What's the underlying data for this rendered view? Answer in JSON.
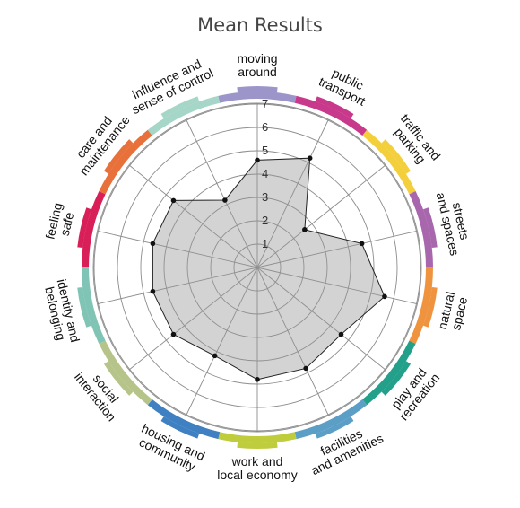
{
  "chart_data": {
    "type": "radar",
    "title": "Mean Results",
    "rlim": [
      0,
      7
    ],
    "r_ticks": [
      "1",
      "2",
      "3",
      "4",
      "5",
      "6",
      "7"
    ],
    "grid": true,
    "categories": [
      {
        "label": "moving around",
        "lines": [
          "moving",
          "around"
        ],
        "color": "#9b95c9"
      },
      {
        "label": "public transport",
        "lines": [
          "public",
          "transport"
        ],
        "color": "#c8388b"
      },
      {
        "label": "traffic and parking",
        "lines": [
          "traffic and",
          "parking"
        ],
        "color": "#f4cf3c"
      },
      {
        "label": "streets and spaces",
        "lines": [
          "streets",
          "and spaces"
        ],
        "color": "#a866ad"
      },
      {
        "label": "natural space",
        "lines": [
          "natural",
          "space"
        ],
        "color": "#f0933f"
      },
      {
        "label": "play and recreation",
        "lines": [
          "play and",
          "recreation"
        ],
        "color": "#22a08a"
      },
      {
        "label": "facilities and amenities",
        "lines": [
          "facilities",
          "and amenities"
        ],
        "color": "#5b9ec6"
      },
      {
        "label": "work and local economy",
        "lines": [
          "work and",
          "local economy"
        ],
        "color": "#bfcd3c"
      },
      {
        "label": "housing and community",
        "lines": [
          "housing and",
          "community"
        ],
        "color": "#3f80c2"
      },
      {
        "label": "social interaction",
        "lines": [
          "social",
          "interaction"
        ],
        "color": "#b6c48a"
      },
      {
        "label": "identity and belonging",
        "lines": [
          "identity and",
          "belonging"
        ],
        "color": "#7fc4b4"
      },
      {
        "label": "feeling safe",
        "lines": [
          "feeling",
          "safe"
        ],
        "color": "#d81f58"
      },
      {
        "label": "care and maintenance",
        "lines": [
          "care and",
          "maintenance"
        ],
        "color": "#e8703a"
      },
      {
        "label": "influence and sense of control",
        "lines": [
          "influence and",
          "sense of control"
        ],
        "color": "#a6d6c7"
      }
    ],
    "series": [
      {
        "values": [
          4.6,
          5.2,
          2.6,
          4.6,
          5.6,
          4.6,
          4.8,
          4.8,
          4.2,
          4.6,
          4.6,
          4.6,
          4.6,
          3.2
        ]
      }
    ]
  }
}
